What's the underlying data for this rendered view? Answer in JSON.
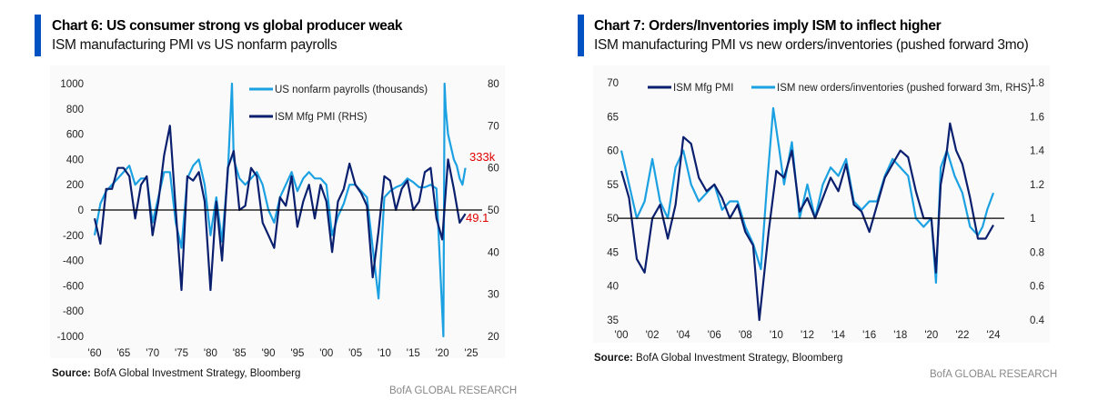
{
  "chart_data": [
    {
      "type": "line",
      "title": "Chart 6: US consumer strong vs global producer weak",
      "subtitle": "ISM manufacturing PMI vs US nonfarm payrolls",
      "xlim": [
        1959,
        2028
      ],
      "ylim": [
        -1000,
        1000
      ],
      "y2lim": [
        20,
        80
      ],
      "xticks": [
        1960,
        1965,
        1970,
        1975,
        1980,
        1985,
        1990,
        1995,
        2000,
        2005,
        2010,
        2015,
        2020,
        2025
      ],
      "xtick_labels": [
        "'60",
        "'65",
        "'70",
        "'75",
        "'80",
        "'85",
        "'90",
        "'95",
        "'00",
        "'05",
        "'10",
        "'15",
        "'20",
        "'25"
      ],
      "yticks": [
        1000,
        800,
        600,
        400,
        200,
        0,
        -200,
        -400,
        -600,
        -800,
        -1000
      ],
      "y2ticks": [
        80,
        70,
        60,
        50,
        40,
        30,
        20
      ],
      "reference_line": {
        "axis": "y",
        "value": 0
      },
      "series": [
        {
          "name": "US nonfarm payrolls (thousands)",
          "axis": "left",
          "color": "#1ba1e2",
          "x": [
            1960,
            1961,
            1962,
            1963,
            1964,
            1965,
            1966,
            1967,
            1968,
            1969,
            1970,
            1971,
            1972,
            1973,
            1974,
            1975,
            1976,
            1977,
            1978,
            1979,
            1980,
            1981,
            1982,
            1983,
            1983.7,
            1984,
            1985,
            1986,
            1987,
            1988,
            1989,
            1990,
            1991,
            1992,
            1993,
            1994,
            1995,
            1996,
            1997,
            1998,
            1999,
            2000,
            2001,
            2002,
            2003,
            2004,
            2005,
            2006,
            2007,
            2008,
            2009,
            2010,
            2011,
            2012,
            2013,
            2014,
            2015,
            2016,
            2017,
            2018,
            2019,
            2020.2,
            2020.4,
            2020.6,
            2021,
            2021.5,
            2022,
            2022.5,
            2023,
            2023.5,
            2024
          ],
          "y": [
            -200,
            50,
            150,
            200,
            250,
            300,
            350,
            200,
            250,
            250,
            -100,
            100,
            300,
            300,
            -100,
            -300,
            250,
            350,
            400,
            200,
            -200,
            100,
            -250,
            300,
            1000,
            400,
            250,
            200,
            250,
            300,
            200,
            0,
            -100,
            100,
            200,
            300,
            150,
            250,
            300,
            250,
            250,
            200,
            -200,
            -50,
            50,
            200,
            200,
            150,
            100,
            -300,
            -700,
            100,
            150,
            180,
            200,
            250,
            220,
            180,
            180,
            200,
            170,
            -1000,
            1000,
            800,
            600,
            500,
            400,
            350,
            250,
            200,
            333
          ]
        },
        {
          "name": "ISM Mfg PMI (RHS)",
          "axis": "right",
          "color": "#0a1f6e",
          "x": [
            1960,
            1961,
            1962,
            1963,
            1964,
            1965,
            1966,
            1967,
            1968,
            1969,
            1970,
            1971,
            1972,
            1973,
            1974,
            1975,
            1976,
            1977,
            1978,
            1979,
            1980,
            1981,
            1982,
            1983,
            1984,
            1985,
            1986,
            1987,
            1988,
            1989,
            1990,
            1991,
            1992,
            1993,
            1994,
            1995,
            1996,
            1997,
            1998,
            1999,
            2000,
            2001,
            2002,
            2003,
            2004,
            2005,
            2006,
            2007,
            2008,
            2009,
            2010,
            2011,
            2012,
            2013,
            2014,
            2015,
            2016,
            2017,
            2018,
            2019,
            2020,
            2021,
            2022,
            2023,
            2024
          ],
          "y": [
            48,
            42,
            55,
            55,
            60,
            60,
            58,
            48,
            56,
            58,
            44,
            52,
            63,
            70,
            50,
            31,
            58,
            57,
            59,
            52,
            31,
            52,
            38,
            60,
            64,
            50,
            51,
            60,
            58,
            47,
            44,
            41,
            53,
            51,
            58,
            46,
            52,
            56,
            48,
            56,
            52,
            40,
            52,
            55,
            61,
            56,
            54,
            51,
            34,
            45,
            58,
            57,
            50,
            55,
            57,
            50,
            52,
            59,
            60,
            48,
            43,
            62,
            55,
            47,
            49.1
          ]
        }
      ],
      "annotations": [
        "333k",
        "49.1"
      ],
      "legend": "top-center",
      "source_label": "Source:",
      "source": "BofA Global Investment Strategy, Bloomberg",
      "brand": "BofA GLOBAL RESEARCH"
    },
    {
      "type": "line",
      "title": "Chart 7: Orders/Inventories imply ISM to inflect higher",
      "subtitle": "ISM manufacturing PMI vs new orders/inventories (pushed forward 3mo)",
      "xlim": [
        1999.8,
        2026
      ],
      "ylim": [
        35,
        70
      ],
      "y2lim": [
        0.4,
        1.8
      ],
      "xticks": [
        2000,
        2002,
        2004,
        2006,
        2008,
        2010,
        2012,
        2014,
        2016,
        2018,
        2020,
        2022,
        2024
      ],
      "xtick_labels": [
        "'00",
        "'02",
        "'04",
        "'06",
        "'08",
        "'10",
        "'12",
        "'14",
        "'16",
        "'18",
        "'20",
        "'22",
        "'24"
      ],
      "yticks": [
        70,
        65,
        60,
        55,
        50,
        45,
        40,
        35
      ],
      "y2ticks": [
        1.8,
        1.6,
        1.4,
        1.2,
        1,
        0.8,
        0.6,
        0.4
      ],
      "reference_line": {
        "axis": "y",
        "value": 50
      },
      "series": [
        {
          "name": "ISM Mfg PMI",
          "axis": "left",
          "color": "#0a1f6e",
          "x": [
            2000,
            2000.5,
            2001,
            2001.5,
            2002,
            2002.5,
            2003,
            2003.5,
            2004,
            2004.5,
            2005,
            2005.5,
            2006,
            2006.5,
            2007,
            2007.5,
            2008,
            2008.5,
            2008.9,
            2009.5,
            2010,
            2010.5,
            2011,
            2011.5,
            2012,
            2012.5,
            2013,
            2013.5,
            2014,
            2014.5,
            2015,
            2015.5,
            2016,
            2016.5,
            2017,
            2017.5,
            2018,
            2018.5,
            2019,
            2019.5,
            2020,
            2020.3,
            2020.6,
            2021,
            2021.2,
            2021.6,
            2022,
            2022.5,
            2023,
            2023.5,
            2024
          ],
          "y": [
            57,
            53,
            44,
            42,
            50,
            52,
            47,
            52,
            62,
            61,
            56,
            54,
            55,
            53,
            50,
            52,
            48,
            46,
            35,
            48,
            57,
            56,
            60,
            51,
            53,
            50,
            53,
            56,
            54,
            58,
            52,
            51,
            48,
            52,
            56,
            58,
            60,
            59,
            54,
            50,
            50,
            42,
            55,
            60,
            64,
            60,
            58,
            53,
            47,
            47,
            49
          ]
        },
        {
          "name": "ISM new orders/inventories (pushed forward 3m, RHS)",
          "axis": "right",
          "color": "#1ba1e2",
          "x": [
            2000,
            2000.5,
            2001,
            2001.5,
            2002,
            2002.5,
            2003,
            2003.5,
            2004,
            2004.5,
            2005,
            2005.5,
            2006,
            2006.5,
            2007,
            2007.5,
            2008,
            2008.5,
            2009,
            2009.4,
            2009.8,
            2010.2,
            2010.5,
            2011,
            2011.5,
            2012,
            2012.5,
            2013,
            2013.5,
            2014,
            2014.5,
            2015,
            2015.5,
            2016,
            2016.5,
            2017,
            2017.5,
            2018,
            2018.5,
            2019,
            2019.5,
            2020,
            2020.3,
            2020.6,
            2021,
            2021.5,
            2022,
            2022.5,
            2023,
            2023.3,
            2023.6,
            2024
          ],
          "y": [
            1.4,
            1.2,
            1.0,
            1.1,
            1.35,
            1.1,
            1.0,
            1.3,
            1.4,
            1.2,
            1.1,
            1.15,
            1.2,
            1.05,
            1.1,
            1.1,
            0.95,
            0.85,
            0.7,
            1.2,
            1.65,
            1.4,
            1.2,
            1.45,
            1.0,
            1.2,
            1.0,
            1.2,
            1.3,
            1.25,
            1.35,
            1.1,
            1.05,
            1.1,
            1.1,
            1.25,
            1.35,
            1.3,
            1.25,
            1.0,
            0.95,
            1.0,
            0.62,
            1.3,
            1.4,
            1.25,
            1.15,
            0.95,
            0.9,
            0.95,
            1.05,
            1.15
          ]
        }
      ],
      "legend": "top-center",
      "source_label": "Source:",
      "source": "BofA Global Investment Strategy, Bloomberg",
      "brand": "BofA GLOBAL RESEARCH"
    }
  ]
}
